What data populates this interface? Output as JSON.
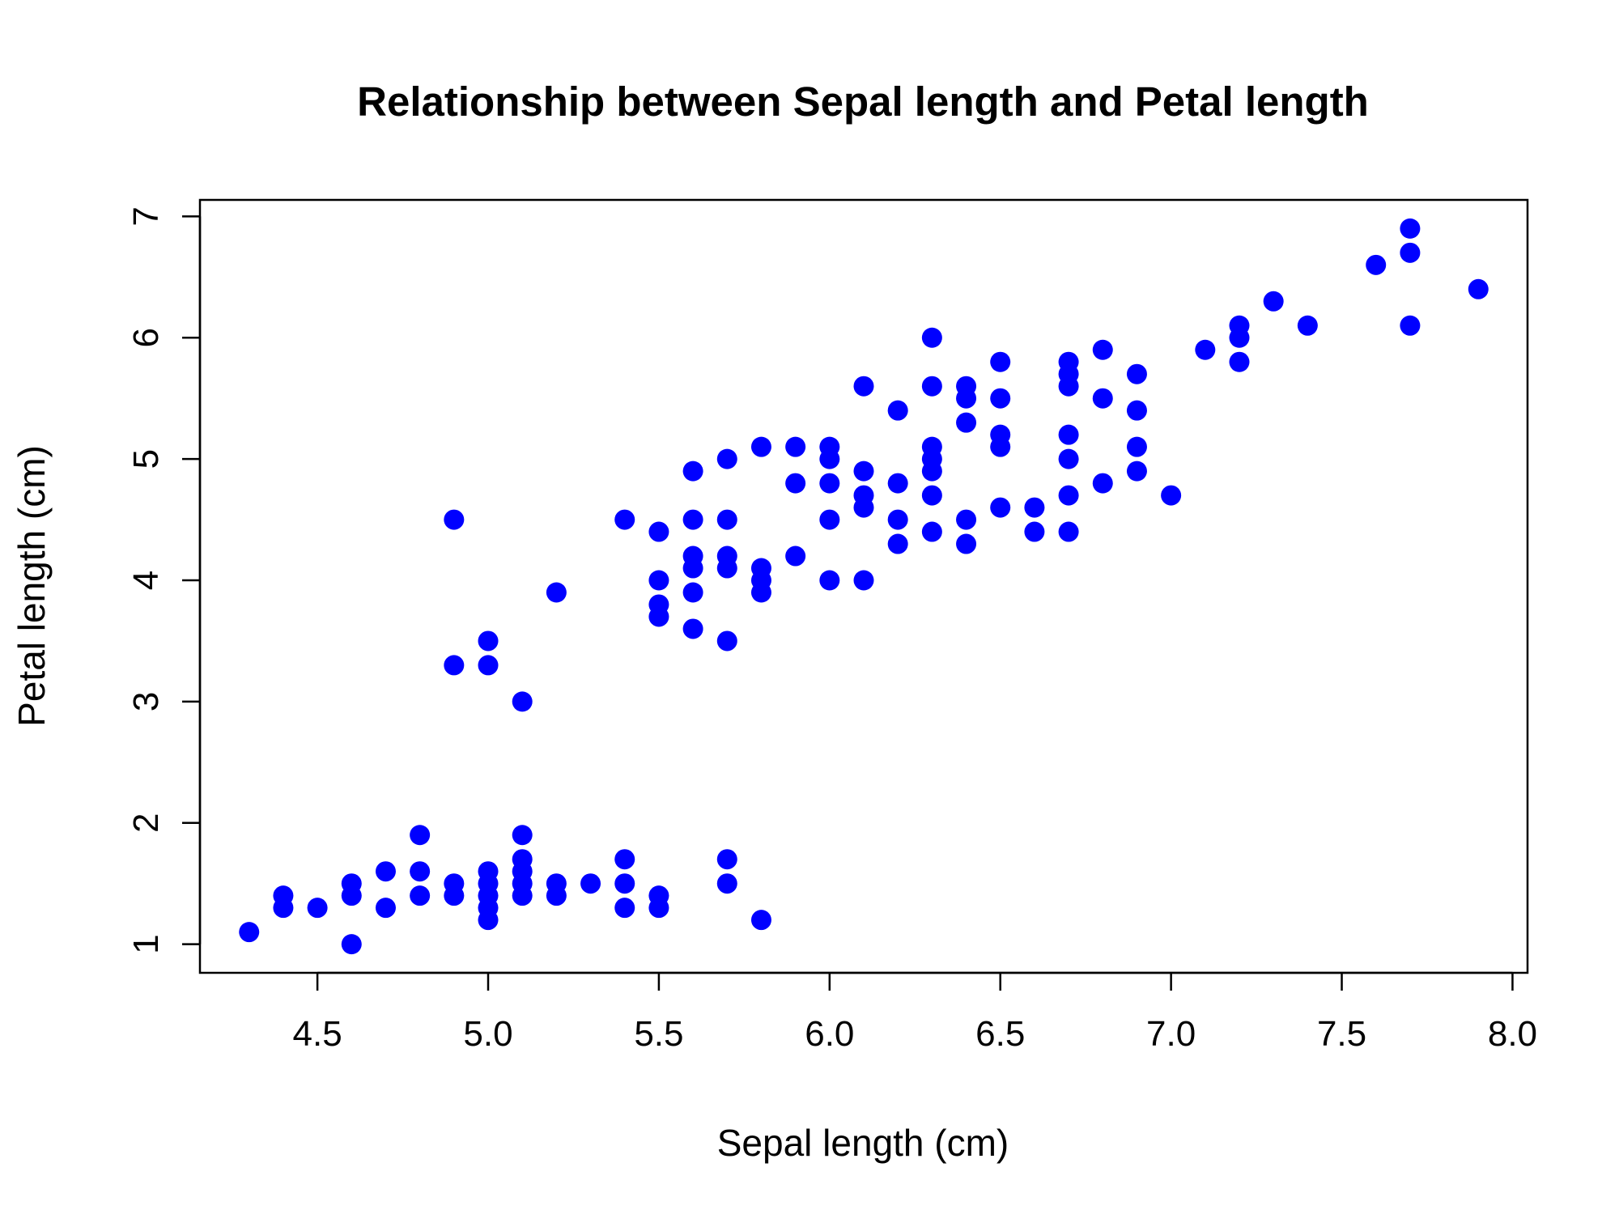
{
  "chart_data": {
    "type": "scatter",
    "title": "Relationship between Sepal length and Petal length",
    "xlabel": "Sepal length (cm)",
    "ylabel": "Petal length (cm)",
    "xlim": [
      4.3,
      7.9
    ],
    "ylim": [
      1.0,
      6.9
    ],
    "xticks": [
      4.5,
      5.0,
      5.5,
      6.0,
      6.5,
      7.0,
      7.5,
      8.0
    ],
    "xtick_labels": [
      "4.5",
      "5.0",
      "5.5",
      "6.0",
      "6.5",
      "7.0",
      "7.5",
      "8.0"
    ],
    "yticks": [
      1,
      2,
      3,
      4,
      5,
      6,
      7
    ],
    "ytick_labels": [
      "1",
      "2",
      "3",
      "4",
      "5",
      "6",
      "7"
    ],
    "grid": false,
    "point_color": "#0000ff",
    "points": [
      [
        4.3,
        1.1
      ],
      [
        4.4,
        1.3
      ],
      [
        4.4,
        1.4
      ],
      [
        4.5,
        1.3
      ],
      [
        4.6,
        1.0
      ],
      [
        4.6,
        1.4
      ],
      [
        4.6,
        1.5
      ],
      [
        4.7,
        1.3
      ],
      [
        4.7,
        1.6
      ],
      [
        4.8,
        1.4
      ],
      [
        4.8,
        1.6
      ],
      [
        4.8,
        1.9
      ],
      [
        4.9,
        1.4
      ],
      [
        4.9,
        1.5
      ],
      [
        4.9,
        3.3
      ],
      [
        4.9,
        4.5
      ],
      [
        5.0,
        1.2
      ],
      [
        5.0,
        1.3
      ],
      [
        5.0,
        1.4
      ],
      [
        5.0,
        1.5
      ],
      [
        5.0,
        1.6
      ],
      [
        5.0,
        3.3
      ],
      [
        5.0,
        3.5
      ],
      [
        5.1,
        1.4
      ],
      [
        5.1,
        1.5
      ],
      [
        5.1,
        1.6
      ],
      [
        5.1,
        1.7
      ],
      [
        5.1,
        1.9
      ],
      [
        5.1,
        3.0
      ],
      [
        5.2,
        1.4
      ],
      [
        5.2,
        1.5
      ],
      [
        5.2,
        3.9
      ],
      [
        5.3,
        1.5
      ],
      [
        5.4,
        1.3
      ],
      [
        5.4,
        1.5
      ],
      [
        5.4,
        1.7
      ],
      [
        5.4,
        4.5
      ],
      [
        5.5,
        1.3
      ],
      [
        5.5,
        1.4
      ],
      [
        5.5,
        3.7
      ],
      [
        5.5,
        3.8
      ],
      [
        5.5,
        4.0
      ],
      [
        5.5,
        4.4
      ],
      [
        5.6,
        3.6
      ],
      [
        5.6,
        3.9
      ],
      [
        5.6,
        4.1
      ],
      [
        5.6,
        4.2
      ],
      [
        5.6,
        4.5
      ],
      [
        5.6,
        4.9
      ],
      [
        5.7,
        1.5
      ],
      [
        5.7,
        1.7
      ],
      [
        5.7,
        3.5
      ],
      [
        5.7,
        4.1
      ],
      [
        5.7,
        4.2
      ],
      [
        5.7,
        4.5
      ],
      [
        5.7,
        5.0
      ],
      [
        5.8,
        1.2
      ],
      [
        5.8,
        3.9
      ],
      [
        5.8,
        4.0
      ],
      [
        5.8,
        4.1
      ],
      [
        5.8,
        5.1
      ],
      [
        5.9,
        4.2
      ],
      [
        5.9,
        4.8
      ],
      [
        5.9,
        5.1
      ],
      [
        6.0,
        4.0
      ],
      [
        6.0,
        4.5
      ],
      [
        6.0,
        4.8
      ],
      [
        6.0,
        5.0
      ],
      [
        6.0,
        5.1
      ],
      [
        6.1,
        4.0
      ],
      [
        6.1,
        4.6
      ],
      [
        6.1,
        4.7
      ],
      [
        6.1,
        4.9
      ],
      [
        6.1,
        5.6
      ],
      [
        6.2,
        4.3
      ],
      [
        6.2,
        4.5
      ],
      [
        6.2,
        4.8
      ],
      [
        6.2,
        5.4
      ],
      [
        6.3,
        4.4
      ],
      [
        6.3,
        4.7
      ],
      [
        6.3,
        4.9
      ],
      [
        6.3,
        5.0
      ],
      [
        6.3,
        5.1
      ],
      [
        6.3,
        5.6
      ],
      [
        6.3,
        6.0
      ],
      [
        6.4,
        4.3
      ],
      [
        6.4,
        4.5
      ],
      [
        6.4,
        5.3
      ],
      [
        6.4,
        5.5
      ],
      [
        6.4,
        5.6
      ],
      [
        6.5,
        4.6
      ],
      [
        6.5,
        5.1
      ],
      [
        6.5,
        5.2
      ],
      [
        6.5,
        5.5
      ],
      [
        6.5,
        5.8
      ],
      [
        6.6,
        4.4
      ],
      [
        6.6,
        4.6
      ],
      [
        6.7,
        4.4
      ],
      [
        6.7,
        4.7
      ],
      [
        6.7,
        5.0
      ],
      [
        6.7,
        5.2
      ],
      [
        6.7,
        5.6
      ],
      [
        6.7,
        5.7
      ],
      [
        6.7,
        5.8
      ],
      [
        6.8,
        4.8
      ],
      [
        6.8,
        5.5
      ],
      [
        6.8,
        5.9
      ],
      [
        6.9,
        4.9
      ],
      [
        6.9,
        5.1
      ],
      [
        6.9,
        5.4
      ],
      [
        6.9,
        5.7
      ],
      [
        7.0,
        4.7
      ],
      [
        7.1,
        5.9
      ],
      [
        7.2,
        5.8
      ],
      [
        7.2,
        6.0
      ],
      [
        7.2,
        6.1
      ],
      [
        7.3,
        6.3
      ],
      [
        7.4,
        6.1
      ],
      [
        7.6,
        6.6
      ],
      [
        7.7,
        6.1
      ],
      [
        7.7,
        6.7
      ],
      [
        7.7,
        6.9
      ],
      [
        7.9,
        6.4
      ]
    ]
  }
}
